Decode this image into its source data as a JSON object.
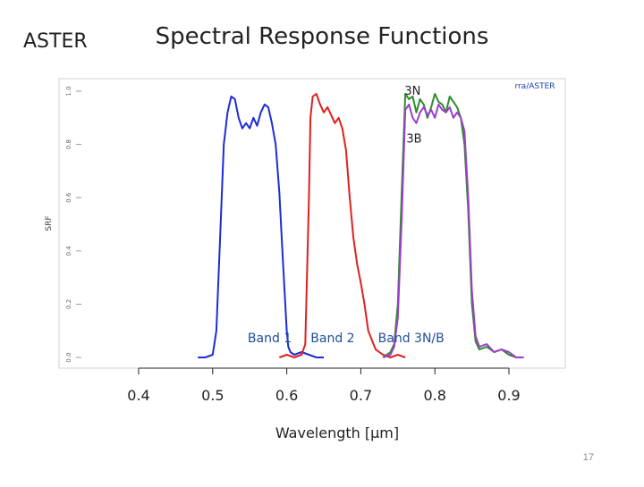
{
  "slide": {
    "corner_title": "ASTER",
    "title": "Spectral Response Functions",
    "page_number": "17"
  },
  "colors": {
    "band1": "#1f2bd6",
    "band2": "#e02020",
    "band3n": "#2e8b2e",
    "band3b": "#9b3fc8",
    "annotation_text": "#1f4e9a"
  },
  "chart_data": {
    "type": "line",
    "title": "",
    "xlabel": "Wavelength [μm]",
    "ylabel": "SRF",
    "watermark": "rra/ASTER",
    "xlim": [
      0.35,
      0.95
    ],
    "ylim": [
      0,
      1.0
    ],
    "x_ticks": [
      0.4,
      0.5,
      0.6,
      0.7,
      0.8,
      0.9
    ],
    "x_tick_labels": [
      "0.4",
      "0.5",
      "0.6",
      "0.7",
      "0.8",
      "0.9"
    ],
    "y_ticks": [
      0.0,
      0.2,
      0.4,
      0.6,
      0.8,
      1.0
    ],
    "y_tick_labels": [
      "0.0",
      "0.2",
      "0.4",
      "0.6",
      "0.8",
      "1.0"
    ],
    "grid": false,
    "annotations": [
      {
        "text": "3N",
        "x": 0.77,
        "y": 1.0
      },
      {
        "text": "3B",
        "x": 0.772,
        "y": 0.82
      },
      {
        "text": "Band 1",
        "x": 0.577,
        "y": 0.07
      },
      {
        "text": "Band 2",
        "x": 0.662,
        "y": 0.07
      },
      {
        "text": "Band 3N/B",
        "x": 0.768,
        "y": 0.07
      }
    ],
    "series": [
      {
        "name": "Band 1",
        "color_key": "band1",
        "x": [
          0.48,
          0.49,
          0.5,
          0.505,
          0.51,
          0.515,
          0.52,
          0.525,
          0.53,
          0.535,
          0.54,
          0.545,
          0.55,
          0.555,
          0.56,
          0.565,
          0.57,
          0.575,
          0.58,
          0.585,
          0.59,
          0.595,
          0.6,
          0.602,
          0.605,
          0.61,
          0.62,
          0.63,
          0.64,
          0.65
        ],
        "y": [
          0.0,
          0.0,
          0.01,
          0.1,
          0.45,
          0.8,
          0.92,
          0.98,
          0.97,
          0.9,
          0.86,
          0.88,
          0.86,
          0.9,
          0.87,
          0.92,
          0.95,
          0.94,
          0.88,
          0.8,
          0.62,
          0.35,
          0.1,
          0.04,
          0.02,
          0.01,
          0.02,
          0.01,
          0.0,
          0.0
        ]
      },
      {
        "name": "Band 2",
        "color_key": "band2",
        "x": [
          0.59,
          0.6,
          0.61,
          0.62,
          0.625,
          0.63,
          0.632,
          0.635,
          0.64,
          0.645,
          0.65,
          0.655,
          0.66,
          0.665,
          0.67,
          0.675,
          0.68,
          0.685,
          0.69,
          0.695,
          0.7,
          0.705,
          0.71,
          0.72,
          0.73,
          0.74,
          0.75,
          0.76
        ],
        "y": [
          0.0,
          0.01,
          0.0,
          0.01,
          0.05,
          0.6,
          0.9,
          0.98,
          0.99,
          0.95,
          0.92,
          0.94,
          0.91,
          0.88,
          0.9,
          0.86,
          0.78,
          0.6,
          0.45,
          0.35,
          0.28,
          0.2,
          0.1,
          0.03,
          0.01,
          0.0,
          0.01,
          0.0
        ]
      },
      {
        "name": "Band 3N",
        "color_key": "band3n",
        "x": [
          0.73,
          0.74,
          0.745,
          0.75,
          0.755,
          0.76,
          0.765,
          0.77,
          0.775,
          0.78,
          0.785,
          0.79,
          0.795,
          0.8,
          0.805,
          0.81,
          0.815,
          0.82,
          0.825,
          0.83,
          0.835,
          0.84,
          0.845,
          0.85,
          0.855,
          0.86,
          0.87,
          0.88,
          0.89,
          0.9,
          0.91,
          0.92
        ],
        "y": [
          0.0,
          0.02,
          0.05,
          0.2,
          0.6,
          0.99,
          0.97,
          0.98,
          0.92,
          0.97,
          0.95,
          0.9,
          0.94,
          0.99,
          0.96,
          0.95,
          0.92,
          0.98,
          0.96,
          0.94,
          0.9,
          0.8,
          0.55,
          0.2,
          0.06,
          0.03,
          0.04,
          0.02,
          0.03,
          0.01,
          0.0,
          0.0
        ]
      },
      {
        "name": "Band 3B",
        "color_key": "band3b",
        "x": [
          0.73,
          0.74,
          0.745,
          0.75,
          0.755,
          0.76,
          0.765,
          0.77,
          0.775,
          0.78,
          0.785,
          0.79,
          0.795,
          0.8,
          0.805,
          0.81,
          0.815,
          0.82,
          0.825,
          0.83,
          0.835,
          0.84,
          0.845,
          0.85,
          0.855,
          0.86,
          0.87,
          0.88,
          0.89,
          0.9,
          0.91,
          0.92
        ],
        "y": [
          0.0,
          0.01,
          0.04,
          0.15,
          0.5,
          0.93,
          0.95,
          0.9,
          0.88,
          0.92,
          0.94,
          0.91,
          0.93,
          0.9,
          0.95,
          0.93,
          0.92,
          0.94,
          0.9,
          0.92,
          0.9,
          0.85,
          0.6,
          0.25,
          0.08,
          0.04,
          0.05,
          0.02,
          0.03,
          0.02,
          0.0,
          0.0
        ]
      }
    ]
  }
}
